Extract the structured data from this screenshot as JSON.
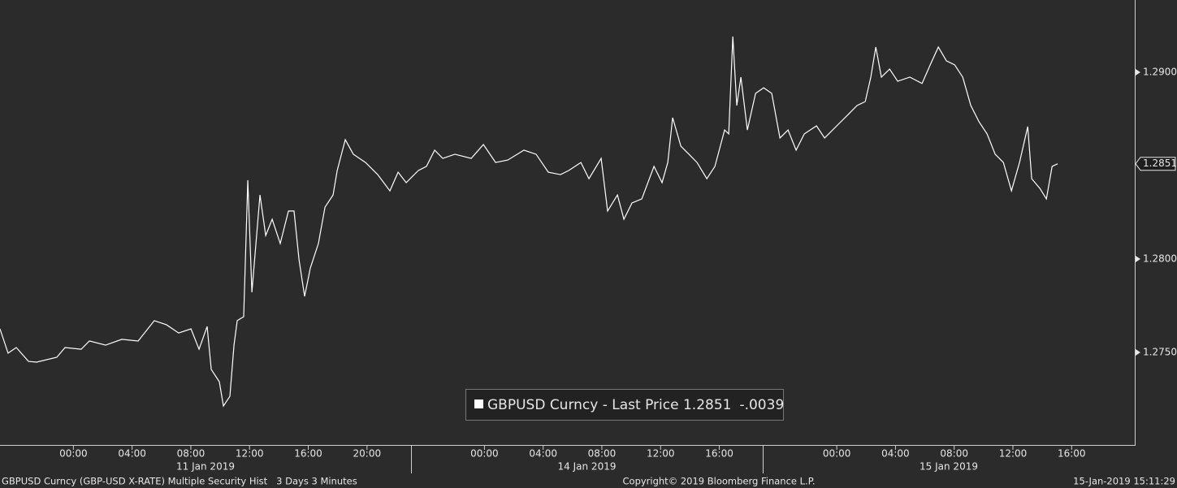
{
  "chart_data": {
    "type": "line",
    "x": [
      0.0,
      0.55,
      1.11,
      1.94,
      2.49,
      3.87,
      4.43,
      5.53,
      6.09,
      7.19,
      8.3,
      9.41,
      10.51,
      11.34,
      12.17,
      13.01,
      13.56,
      14.11,
      14.39,
      14.94,
      15.22,
      15.66,
      15.94,
      16.16,
      16.6,
      16.88,
      17.16,
      17.71,
      18.1,
      18.54,
      19.09,
      19.65,
      20.03,
      20.37,
      20.75,
      21.14,
      21.69,
      22.14,
      22.69,
      22.97,
      23.52,
      24.07,
      24.9,
      25.73,
      26.56,
      27.12,
      27.67,
      28.5,
      29.05,
      29.61,
      30.16,
      30.99,
      32.1,
      32.93,
      33.76,
      34.59,
      35.69,
      36.52,
      37.35,
      38.18,
      38.74,
      39.57,
      40.12,
      40.95,
      41.39,
      42.06,
      42.5,
      43.05,
      43.72,
      44.55,
      45.1,
      45.49,
      45.82,
      46.38,
      46.93,
      47.48,
      48.15,
      48.7,
      49.36,
      49.64,
      49.92,
      50.19,
      50.47,
      50.91,
      51.47,
      52.02,
      52.57,
      53.13,
      53.68,
      54.23,
      54.79,
      55.62,
      56.17,
      57.0,
      57.83,
      58.38,
      58.94,
      59.32,
      59.66,
      60.04,
      60.6,
      61.15,
      61.98,
      62.81,
      63.37,
      63.92,
      64.47,
      65.03,
      65.58,
      66.13,
      66.69,
      67.24,
      67.79,
      68.35,
      68.9,
      69.45,
      70.01,
      70.28,
      70.84,
      71.28,
      71.67,
      72.05
    ],
    "series": [
      {
        "name": "GBPUSD Curncy - Last Price",
        "color": "#ffffff",
        "values": [
          1.27626,
          1.27496,
          1.27526,
          1.27452,
          1.27448,
          1.27474,
          1.27526,
          1.27517,
          1.27561,
          1.27539,
          1.2757,
          1.27561,
          1.2767,
          1.27648,
          1.27604,
          1.27626,
          1.27517,
          1.27639,
          1.27409,
          1.27343,
          1.27213,
          1.27265,
          1.27539,
          1.2767,
          1.27691,
          1.28422,
          1.27822,
          1.28343,
          1.28126,
          1.28213,
          1.28083,
          1.28257,
          1.28257,
          1.27996,
          1.278,
          1.27952,
          1.28083,
          1.28278,
          1.28343,
          1.28474,
          1.28639,
          1.28561,
          1.28517,
          1.28452,
          1.28365,
          1.28465,
          1.28409,
          1.28474,
          1.28496,
          1.28583,
          1.28539,
          1.28561,
          1.28539,
          1.28613,
          1.28517,
          1.2853,
          1.28583,
          1.28561,
          1.28465,
          1.28452,
          1.28474,
          1.28517,
          1.2843,
          1.28539,
          1.28257,
          1.28343,
          1.28213,
          1.283,
          1.28322,
          1.28496,
          1.28409,
          1.28517,
          1.28757,
          1.28604,
          1.28561,
          1.28517,
          1.2843,
          1.28496,
          1.28691,
          1.2867,
          1.29191,
          1.28822,
          1.28974,
          1.28691,
          1.28887,
          1.28917,
          1.28887,
          1.28648,
          1.28691,
          1.28583,
          1.2867,
          1.28713,
          1.28648,
          1.28713,
          1.28778,
          1.28822,
          1.28843,
          1.28974,
          1.29135,
          1.28974,
          1.29017,
          1.28952,
          1.28974,
          1.2894,
          1.2904,
          1.29135,
          1.29061,
          1.2904,
          1.28974,
          1.28822,
          1.28735,
          1.2867,
          1.28561,
          1.28517,
          1.28365,
          1.28517,
          1.28709,
          1.2843,
          1.28378,
          1.28322,
          1.28496,
          1.2851
        ]
      }
    ],
    "legend_value": "1.2851",
    "legend_change": "-.0039",
    "last_price_label": "1.2851",
    "xlim": [
      0,
      77.3
    ],
    "xticks": [
      {
        "value": 5,
        "label": "00:00"
      },
      {
        "value": 9,
        "label": "04:00"
      },
      {
        "value": 13,
        "label": "08:00"
      },
      {
        "value": 17,
        "label": "12:00"
      },
      {
        "value": 21,
        "label": "16:00"
      },
      {
        "value": 25,
        "label": "20:00"
      },
      {
        "value": 33,
        "label": "00:00"
      },
      {
        "value": 37,
        "label": "04:00"
      },
      {
        "value": 41,
        "label": "08:00"
      },
      {
        "value": 45,
        "label": "12:00"
      },
      {
        "value": 49,
        "label": "16:00"
      },
      {
        "value": 57,
        "label": "00:00"
      },
      {
        "value": 61,
        "label": "04:00"
      },
      {
        "value": 65,
        "label": "08:00"
      },
      {
        "value": 69,
        "label": "12:00"
      },
      {
        "value": 73,
        "label": "16:00"
      }
    ],
    "date_labels": [
      "11 Jan 2019",
      "14 Jan 2019",
      "15 Jan 2019"
    ],
    "ylim": [
      1.27,
      1.294
    ],
    "yticks": [
      {
        "value": 1.275,
        "label": "1.2750"
      },
      {
        "value": 1.28,
        "label": "1.2800"
      },
      {
        "value": 1.29,
        "label": "1.2900"
      }
    ],
    "grid": false,
    "footer": {
      "left": "GBPUSD Curncy (GBP-USD X-RATE) Multiple Security Hist   3 Days 3 Minutes",
      "center": "Copyright© 2019 Bloomberg Finance L.P.",
      "right": "15-Jan-2019 15:11:29"
    }
  }
}
